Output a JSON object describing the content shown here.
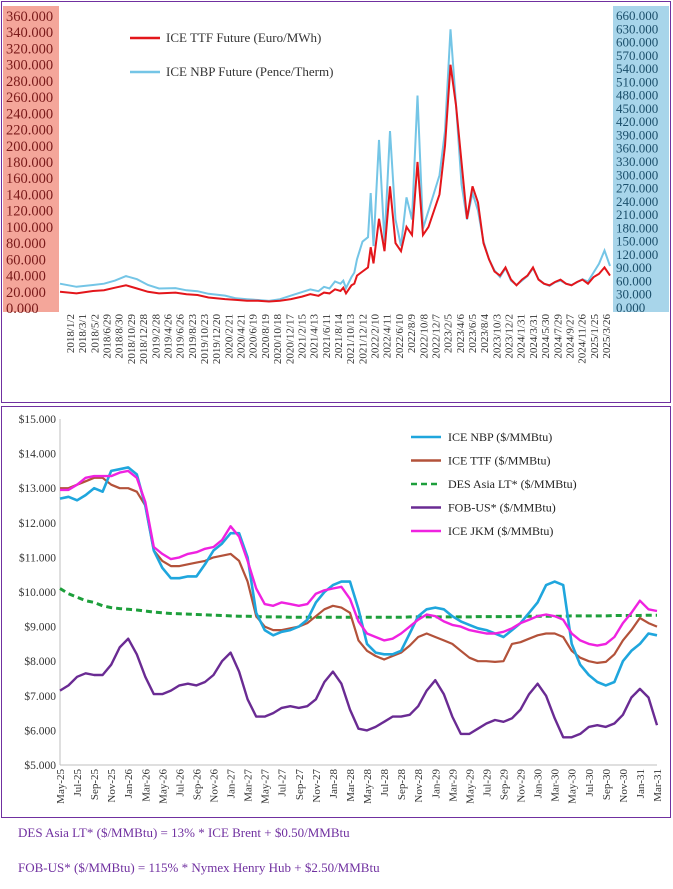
{
  "colors": {
    "frame": "#7030a0",
    "left_axis_bg": "#f4a69a",
    "right_axis_bg": "#a8d5ea",
    "ttf_red": "#e3161b",
    "nbp_light_blue": "#74c5e6",
    "nbp_blue": "#1fa6dd",
    "ttf_brown": "#b3523a",
    "des_green": "#1d9f3b",
    "fob_purple": "#6a2b93",
    "jkm_magenta": "#ef22e0"
  },
  "chart_data": [
    {
      "type": "line",
      "legend": [
        "ICE TTF Future (Euro/MWh)",
        "ICE NBP Future (Pence/Therm)"
      ],
      "left_ticks": [
        "360.000",
        "340.000",
        "320.000",
        "300.000",
        "280.000",
        "260.000",
        "240.000",
        "220.000",
        "200.000",
        "180.000",
        "160.000",
        "140.000",
        "120.000",
        "100.000",
        "80.000",
        "60.000",
        "40.000",
        "20.000",
        "0.000"
      ],
      "right_ticks": [
        "660.000",
        "630.000",
        "600.000",
        "570.000",
        "540.000",
        "510.000",
        "480.000",
        "450.000",
        "420.000",
        "390.000",
        "360.000",
        "330.000",
        "300.000",
        "270.000",
        "240.000",
        "210.000",
        "180.000",
        "150.000",
        "120.000",
        "90.000",
        "60.000",
        "30.000",
        "0.000"
      ],
      "left_ylim": [
        0,
        360
      ],
      "right_ylim": [
        0,
        660
      ],
      "x_labels": [
        "2018/1/2",
        "2018/3/1",
        "2018/5/2",
        "2018/6/29",
        "2018/8/30",
        "2018/10/29",
        "2018/12/28",
        "2019/2/28",
        "2019/4/26",
        "2019/6/26",
        "2019/8/23",
        "2019/10/23",
        "2019/12/20",
        "2020/2/21",
        "2020/4/21",
        "2020/6/19",
        "2020/8/19",
        "2020/10/18",
        "2020/12/17",
        "2021/2/15",
        "2021/4/13",
        "2021/6/11",
        "2021/8/14",
        "2021/10/13",
        "2021/12/12",
        "2022/2/10",
        "2022/4/11",
        "2022/6/10",
        "2022/8/9",
        "2022/10/8",
        "2022/12/7",
        "2023/2/5",
        "2023/4/6",
        "2023/6/5",
        "2023/8/4",
        "2023/10/3",
        "2023/12/2",
        "2024/1/31",
        "2024/3/31",
        "2024/5/30",
        "2024/7/29",
        "2024/9/27",
        "2024/11/26",
        "2025/1/25",
        "2025/3/26"
      ],
      "ttf_series": {
        "name": "ICE TTF Future (Euro/MWh)",
        "t": [
          0,
          0.03,
          0.06,
          0.08,
          0.1,
          0.12,
          0.14,
          0.16,
          0.18,
          0.21,
          0.23,
          0.25,
          0.27,
          0.3,
          0.32,
          0.34,
          0.36,
          0.38,
          0.4,
          0.42,
          0.44,
          0.455,
          0.47,
          0.48,
          0.49,
          0.5,
          0.51,
          0.515,
          0.52,
          0.53,
          0.535,
          0.54,
          0.55,
          0.56,
          0.565,
          0.57,
          0.58,
          0.59,
          0.6,
          0.61,
          0.62,
          0.63,
          0.64,
          0.65,
          0.66,
          0.67,
          0.68,
          0.69,
          0.7,
          0.71,
          0.72,
          0.73,
          0.74,
          0.75,
          0.76,
          0.77,
          0.78,
          0.79,
          0.8,
          0.81,
          0.82,
          0.83,
          0.84,
          0.85,
          0.86,
          0.87,
          0.88,
          0.89,
          0.9,
          0.91,
          0.92,
          0.93,
          0.94,
          0.95,
          0.96,
          0.97,
          0.98,
          0.99,
          1.0
        ],
        "v": [
          20,
          18,
          21,
          22,
          25,
          28,
          24,
          20,
          18,
          19,
          17,
          16,
          13,
          11,
          10,
          9,
          9,
          8,
          9,
          11,
          14,
          17,
          15,
          19,
          18,
          23,
          21,
          25,
          18,
          28,
          30,
          40,
          45,
          50,
          75,
          55,
          110,
          70,
          150,
          80,
          70,
          100,
          90,
          180,
          90,
          100,
          120,
          140,
          200,
          300,
          250,
          180,
          110,
          150,
          130,
          80,
          60,
          45,
          40,
          50,
          35,
          28,
          35,
          40,
          50,
          35,
          30,
          28,
          32,
          35,
          30,
          28,
          32,
          35,
          30,
          38,
          42,
          50,
          40
        ]
      },
      "nbp_series": {
        "name": "ICE NBP Future (Pence/Therm)",
        "t": [
          0,
          0.03,
          0.06,
          0.08,
          0.1,
          0.12,
          0.14,
          0.16,
          0.18,
          0.21,
          0.23,
          0.25,
          0.27,
          0.3,
          0.32,
          0.34,
          0.36,
          0.38,
          0.4,
          0.42,
          0.44,
          0.455,
          0.47,
          0.48,
          0.49,
          0.5,
          0.51,
          0.515,
          0.52,
          0.53,
          0.535,
          0.54,
          0.55,
          0.56,
          0.565,
          0.57,
          0.58,
          0.59,
          0.6,
          0.61,
          0.62,
          0.63,
          0.64,
          0.65,
          0.66,
          0.67,
          0.68,
          0.69,
          0.7,
          0.71,
          0.72,
          0.73,
          0.74,
          0.75,
          0.76,
          0.77,
          0.78,
          0.79,
          0.8,
          0.81,
          0.82,
          0.83,
          0.84,
          0.85,
          0.86,
          0.87,
          0.88,
          0.89,
          0.9,
          0.91,
          0.92,
          0.93,
          0.94,
          0.95,
          0.96,
          0.97,
          0.98,
          0.99,
          1.0
        ],
        "v": [
          55,
          48,
          52,
          55,
          62,
          72,
          65,
          52,
          44,
          45,
          40,
          38,
          32,
          28,
          22,
          20,
          18,
          16,
          20,
          28,
          36,
          42,
          38,
          48,
          44,
          60,
          55,
          62,
          45,
          70,
          80,
          110,
          150,
          160,
          260,
          140,
          380,
          150,
          400,
          200,
          140,
          250,
          200,
          480,
          180,
          220,
          260,
          300,
          400,
          630,
          460,
          280,
          200,
          260,
          220,
          150,
          110,
          85,
          70,
          90,
          62,
          52,
          62,
          72,
          90,
          65,
          55,
          50,
          58,
          62,
          55,
          52,
          58,
          65,
          60,
          80,
          100,
          130,
          95
        ]
      }
    },
    {
      "type": "line",
      "y_ticks": [
        "$15.000",
        "$14.000",
        "$13.000",
        "$12.000",
        "$11.000",
        "$10.000",
        "$9.000",
        "$8.000",
        "$7.000",
        "$6.000",
        "$5.000"
      ],
      "ylim": [
        5,
        15
      ],
      "categories": [
        "May-25",
        "Jun-25",
        "Jul-25",
        "Aug-25",
        "Sep-25",
        "Oct-25",
        "Nov-25",
        "Dec-25",
        "Jan-26",
        "Feb-26",
        "Mar-26",
        "Apr-26",
        "May-26",
        "Jun-26",
        "Jul-26",
        "Aug-26",
        "Sep-26",
        "Oct-26",
        "Nov-26",
        "Dec-26",
        "Jan-27",
        "Feb-27",
        "Mar-27",
        "Apr-27",
        "May-27",
        "Jun-27",
        "Jul-27",
        "Aug-27",
        "Sep-27",
        "Oct-27",
        "Nov-27",
        "Dec-27",
        "Jan-28",
        "Feb-28",
        "Mar-28",
        "Apr-28",
        "May-28",
        "Jun-28",
        "Jul-28",
        "Aug-28",
        "Sep-28",
        "Oct-28",
        "Nov-28",
        "Dec-28",
        "Jan-29",
        "Feb-29",
        "Mar-29",
        "Apr-29",
        "May-29",
        "Jun-29",
        "Jul-29",
        "Aug-29",
        "Sep-29",
        "Oct-29",
        "Nov-29",
        "Dec-29",
        "Jan-30",
        "Feb-30",
        "Mar-30",
        "Apr-30",
        "May-30",
        "Jun-30",
        "Jul-30",
        "Aug-30",
        "Sep-30",
        "Oct-30",
        "Nov-30",
        "Dec-30",
        "Jan-31",
        "Feb-31",
        "Mar-31"
      ],
      "x_tick_labels": [
        "May-25",
        "Jul-25",
        "Sep-25",
        "Nov-25",
        "Jan-26",
        "Mar-26",
        "May-26",
        "Jul-26",
        "Sep-26",
        "Nov-26",
        "Jan-27",
        "Mar-27",
        "May-27",
        "Jul-27",
        "Sep-27",
        "Nov-27",
        "Jan-28",
        "Mar-28",
        "May-28",
        "Jul-28",
        "Sep-28",
        "Nov-28",
        "Jan-29",
        "Mar-29",
        "May-29",
        "Jul-29",
        "Sep-29",
        "Nov-29",
        "Jan-30",
        "Mar-30",
        "May-30",
        "Jul-30",
        "Sep-30",
        "Nov-30",
        "Jan-31",
        "Mar-31"
      ],
      "series": [
        {
          "name": "ICE NBP ($/MMBtu)",
          "values": [
            12.7,
            12.75,
            12.65,
            12.8,
            13.0,
            12.9,
            13.5,
            13.55,
            13.6,
            13.4,
            12.5,
            11.2,
            10.7,
            10.4,
            10.4,
            10.45,
            10.45,
            10.8,
            11.2,
            11.4,
            11.7,
            11.7,
            11.0,
            9.4,
            8.9,
            8.75,
            8.85,
            8.9,
            9.0,
            9.2,
            9.7,
            10.0,
            10.2,
            10.3,
            10.3,
            9.5,
            8.5,
            8.25,
            8.2,
            8.2,
            8.3,
            8.8,
            9.3,
            9.5,
            9.55,
            9.5,
            9.3,
            9.15,
            9.05,
            8.95,
            8.9,
            8.8,
            8.7,
            8.9,
            9.1,
            9.4,
            9.7,
            10.2,
            10.3,
            10.2,
            8.5,
            7.9,
            7.6,
            7.4,
            7.3,
            7.4,
            8.0,
            8.3,
            8.5,
            8.8,
            8.75
          ]
        },
        {
          "name": "ICE TTF ($/MMBtu)",
          "values": [
            13.0,
            13.0,
            13.1,
            13.2,
            13.3,
            13.3,
            13.1,
            13.0,
            13.0,
            12.9,
            12.5,
            11.2,
            10.9,
            10.75,
            10.75,
            10.8,
            10.85,
            10.9,
            11.0,
            11.05,
            11.1,
            10.9,
            10.3,
            9.3,
            9.0,
            8.9,
            8.9,
            8.95,
            9.0,
            9.1,
            9.3,
            9.5,
            9.6,
            9.55,
            9.4,
            8.6,
            8.3,
            8.15,
            8.05,
            8.15,
            8.25,
            8.45,
            8.7,
            8.8,
            8.7,
            8.6,
            8.5,
            8.3,
            8.1,
            8.0,
            8.0,
            7.98,
            8.0,
            8.5,
            8.55,
            8.65,
            8.75,
            8.8,
            8.8,
            8.7,
            8.3,
            8.1,
            8.0,
            7.95,
            7.98,
            8.2,
            8.6,
            8.9,
            9.25,
            9.1,
            9.0
          ]
        },
        {
          "name": "DES Asia LT* ($/MMBtu)",
          "values": [
            10.1,
            9.95,
            9.85,
            9.75,
            9.7,
            9.6,
            9.55,
            9.52,
            9.5,
            9.48,
            9.45,
            9.42,
            9.4,
            9.38,
            9.37,
            9.36,
            9.35,
            9.34,
            9.33,
            9.32,
            9.31,
            9.3,
            9.3,
            9.29,
            9.28,
            9.28,
            9.28,
            9.27,
            9.27,
            9.27,
            9.27,
            9.27,
            9.27,
            9.27,
            9.27,
            9.27,
            9.27,
            9.27,
            9.27,
            9.27,
            9.27,
            9.28,
            9.28,
            9.28,
            9.28,
            9.28,
            9.28,
            9.28,
            9.28,
            9.29,
            9.29,
            9.29,
            9.29,
            9.29,
            9.3,
            9.3,
            9.3,
            9.3,
            9.3,
            9.3,
            9.31,
            9.31,
            9.31,
            9.31,
            9.31,
            9.32,
            9.32,
            9.32,
            9.32,
            9.33,
            9.33
          ]
        },
        {
          "name": "FOB-US* ($/MMBtu)",
          "values": [
            7.15,
            7.3,
            7.55,
            7.65,
            7.6,
            7.6,
            7.9,
            8.4,
            8.65,
            8.2,
            7.55,
            7.05,
            7.05,
            7.15,
            7.3,
            7.35,
            7.3,
            7.4,
            7.6,
            8.0,
            8.25,
            7.7,
            6.9,
            6.4,
            6.4,
            6.5,
            6.65,
            6.7,
            6.65,
            6.7,
            6.9,
            7.4,
            7.7,
            7.35,
            6.6,
            6.05,
            6.0,
            6.1,
            6.25,
            6.4,
            6.4,
            6.45,
            6.7,
            7.15,
            7.45,
            7.05,
            6.4,
            5.9,
            5.9,
            6.05,
            6.2,
            6.3,
            6.25,
            6.35,
            6.6,
            7.05,
            7.35,
            7.0,
            6.35,
            5.8,
            5.8,
            5.9,
            6.1,
            6.15,
            6.1,
            6.2,
            6.45,
            6.95,
            7.2,
            6.95,
            6.15
          ]
        },
        {
          "name": "ICE JKM ($/MMBtu)",
          "values": [
            12.95,
            12.95,
            13.1,
            13.3,
            13.35,
            13.35,
            13.35,
            13.45,
            13.5,
            13.3,
            12.6,
            11.3,
            11.1,
            10.95,
            11.0,
            11.1,
            11.15,
            11.25,
            11.3,
            11.5,
            11.9,
            11.6,
            10.9,
            10.1,
            9.65,
            9.6,
            9.7,
            9.65,
            9.6,
            9.65,
            9.95,
            10.05,
            10.1,
            10.15,
            9.8,
            9.15,
            8.8,
            8.7,
            8.6,
            8.65,
            8.8,
            9.0,
            9.2,
            9.35,
            9.3,
            9.15,
            9.05,
            9.0,
            8.9,
            8.85,
            8.8,
            8.8,
            8.85,
            8.95,
            9.1,
            9.2,
            9.3,
            9.35,
            9.3,
            9.2,
            8.8,
            8.6,
            8.5,
            8.45,
            8.5,
            8.7,
            9.1,
            9.4,
            9.75,
            9.5,
            9.45
          ]
        }
      ]
    }
  ],
  "footnotes": [
    "DES Asia LT* ($/MMBtu) = 13% * ICE Brent + $0.50/MMBtu",
    "FOB-US* ($/MMBtu) = 115% * Nymex Henry Hub + $2.50/MMBtu"
  ]
}
